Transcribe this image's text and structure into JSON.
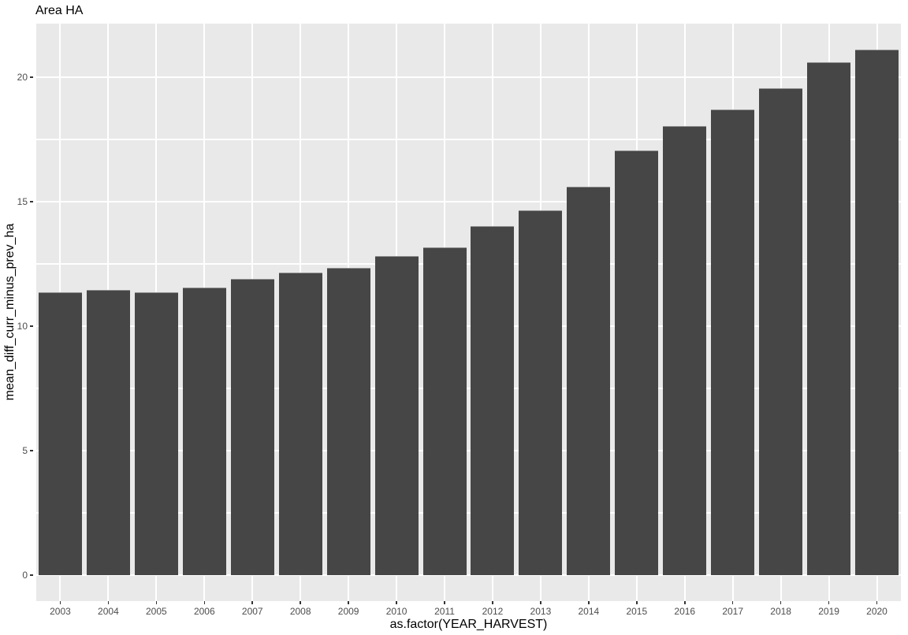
{
  "chart_data": {
    "type": "bar",
    "title": "Area HA",
    "xlabel": "as.factor(YEAR_HARVEST)",
    "ylabel": "mean_diff_curr_minus_prev_ha",
    "categories": [
      "2003",
      "2004",
      "2005",
      "2006",
      "2007",
      "2008",
      "2009",
      "2010",
      "2011",
      "2012",
      "2013",
      "2014",
      "2015",
      "2016",
      "2017",
      "2018",
      "2019",
      "2020"
    ],
    "values": [
      11.35,
      11.45,
      11.35,
      11.55,
      11.9,
      12.15,
      12.35,
      12.8,
      13.15,
      14.0,
      14.65,
      15.6,
      17.05,
      18.05,
      18.7,
      19.55,
      20.6,
      21.1
    ],
    "y_ticks": [
      0,
      5,
      10,
      15,
      20
    ],
    "y_minor_ticks": [
      2.5,
      7.5,
      12.5,
      17.5
    ],
    "ylim": [
      -1.05,
      22.15
    ],
    "grid": "white-on-gray",
    "legend": "none",
    "colors": {
      "bar_fill": "#464646",
      "bar_top_edge": "#8f8f8f",
      "panel_bg": "#e9e9e9",
      "gridline": "#ffffff",
      "tick_text": "#4d4d4d",
      "title_text": "#000000",
      "tick_mark": "#333333",
      "page_bg": "#ffffff"
    }
  }
}
